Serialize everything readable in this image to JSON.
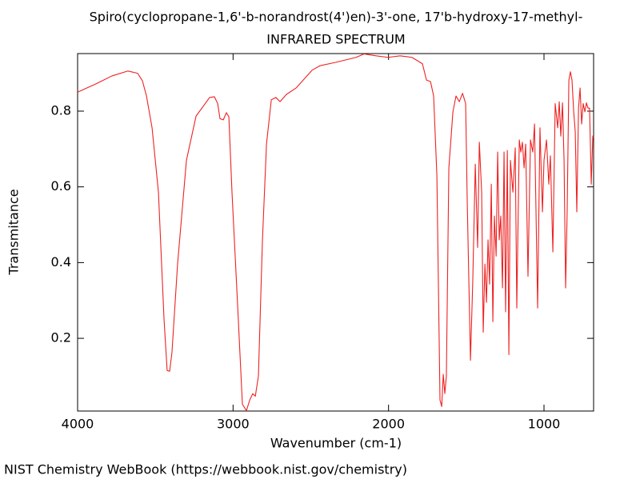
{
  "chart_data": {
    "type": "line",
    "title": "Spiro(cyclopropane-1,6'-b-norandrost(4')en)-3'-one, 17'b-hydroxy-17-methyl-",
    "subtitle": "INFRARED SPECTRUM",
    "x_label": "Wavenumber (cm-1)",
    "y_label": "Transmitance",
    "source": "NIST Chemistry WebBook (https://webbook.nist.gov/chemistry)",
    "color": "#ee2222",
    "xlim": [
      4000,
      681
    ],
    "ylim": [
      0.008,
      0.952
    ],
    "xticks": [
      4000,
      3000,
      2000,
      1000
    ],
    "yticks": [
      0.2,
      0.4,
      0.6,
      0.8
    ],
    "x": [
      4000,
      3882,
      3779,
      3676,
      3614,
      3583,
      3557,
      3521,
      3480,
      3444,
      3424,
      3408,
      3393,
      3357,
      3300,
      3238,
      3151,
      3120,
      3099,
      3084,
      3063,
      3043,
      3027,
      3007,
      2971,
      2940,
      2914,
      2893,
      2873,
      2857,
      2837,
      2811,
      2785,
      2754,
      2724,
      2698,
      2657,
      2595,
      2492,
      2441,
      2338,
      2209,
      2158,
      2080,
      2003,
      1926,
      1849,
      1782,
      1756,
      1730,
      1710,
      1689,
      1669,
      1658,
      1648,
      1638,
      1628,
      1612,
      1586,
      1566,
      1545,
      1524,
      1504,
      1494,
      1473,
      1458,
      1442,
      1427,
      1416,
      1401,
      1391,
      1380,
      1370,
      1360,
      1350,
      1339,
      1329,
      1319,
      1308,
      1298,
      1288,
      1278,
      1267,
      1257,
      1247,
      1236,
      1226,
      1216,
      1200,
      1185,
      1175,
      1159,
      1149,
      1139,
      1128,
      1118,
      1103,
      1087,
      1072,
      1061,
      1041,
      1026,
      1010,
      1000,
      984,
      969,
      959,
      943,
      928,
      912,
      902,
      892,
      881,
      871,
      861,
      851,
      840,
      830,
      820,
      809,
      799,
      789,
      778,
      768,
      758,
      748,
      737,
      727,
      717,
      707,
      696,
      686,
      681
    ],
    "values": [
      0.85,
      0.872,
      0.893,
      0.906,
      0.9,
      0.88,
      0.84,
      0.756,
      0.586,
      0.25,
      0.115,
      0.113,
      0.163,
      0.396,
      0.67,
      0.787,
      0.836,
      0.838,
      0.82,
      0.78,
      0.777,
      0.796,
      0.785,
      0.586,
      0.29,
      0.026,
      0.009,
      0.037,
      0.054,
      0.047,
      0.1,
      0.46,
      0.713,
      0.83,
      0.836,
      0.825,
      0.844,
      0.861,
      0.908,
      0.92,
      0.929,
      0.942,
      0.951,
      0.946,
      0.942,
      0.946,
      0.942,
      0.925,
      0.882,
      0.878,
      0.84,
      0.63,
      0.037,
      0.02,
      0.105,
      0.054,
      0.1,
      0.65,
      0.798,
      0.84,
      0.825,
      0.847,
      0.82,
      0.565,
      0.142,
      0.354,
      0.66,
      0.44,
      0.718,
      0.586,
      0.216,
      0.396,
      0.295,
      0.46,
      0.343,
      0.607,
      0.244,
      0.523,
      0.417,
      0.692,
      0.46,
      0.523,
      0.333,
      0.692,
      0.27,
      0.696,
      0.157,
      0.67,
      0.586,
      0.703,
      0.28,
      0.724,
      0.692,
      0.718,
      0.65,
      0.713,
      0.364,
      0.724,
      0.692,
      0.766,
      0.28,
      0.756,
      0.534,
      0.67,
      0.724,
      0.607,
      0.682,
      0.428,
      0.82,
      0.756,
      0.825,
      0.734,
      0.822,
      0.67,
      0.333,
      0.534,
      0.882,
      0.904,
      0.882,
      0.798,
      0.745,
      0.534,
      0.808,
      0.861,
      0.766,
      0.82,
      0.798,
      0.822,
      0.808,
      0.808,
      0.607,
      0.734,
      0.73
    ]
  }
}
